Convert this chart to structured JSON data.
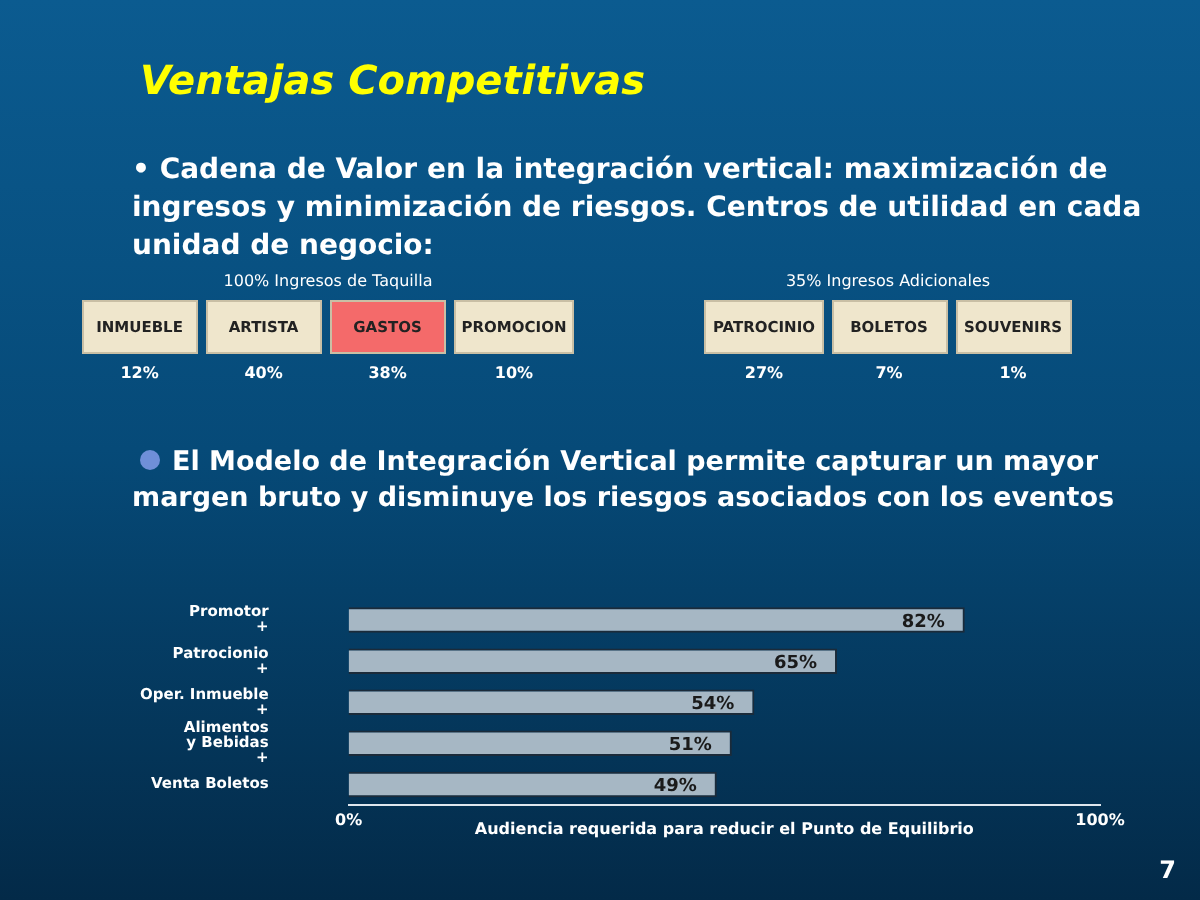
{
  "chart_data": [
    {
      "type": "other",
      "title": "Ventajas Competitivas",
      "subtitle": "• Cadena de Valor en la integración vertical: maximización de ingresos y minimización de riesgos. Centros de utilidad en cada unidad de negocio:",
      "annotations": [
        "7"
      ]
    },
    {
      "type": "other",
      "title": "100% Ingresos de Taquilla",
      "categories": [
        "INMUEBLE",
        "ARTISTA",
        "GASTOS",
        "PROMOCION"
      ],
      "value_labels": [
        "12%",
        "40%",
        "38%",
        "10%"
      ],
      "colors": [
        "#efe6cc",
        "#efe6cc",
        "#f46a6a",
        "#efe6cc"
      ]
    },
    {
      "type": "other",
      "title": "35% Ingresos Adicionales",
      "categories": [
        "PATROCINIO",
        "BOLETOS",
        "SOUVENIRS"
      ],
      "value_labels": [
        "27%",
        "7%",
        "1%"
      ],
      "colors": [
        "#efe6cc",
        "#efe6cc",
        "#efe6cc"
      ]
    },
    {
      "type": "bar",
      "orientation": "horizontal",
      "subtitle": "El Modelo de Integración Vertical permite capturar un mayor margen bruto y disminuye los riesgos asociados con los eventos",
      "xlabel": "Audiencia requerida para reducir el Punto de Equilibrio",
      "categories": [
        "Promotor\n+",
        "Patrocionio\n+",
        "Oper. Inmueble\n+",
        "Alimentos\ny Bebidas\n+",
        "Venta Boletos"
      ],
      "values": [
        82,
        65,
        54,
        51,
        49
      ],
      "value_labels": [
        "82%",
        "65%",
        "54%",
        "51%",
        "49%"
      ],
      "color": "#a6b7c4",
      "xlim": [
        0,
        100
      ],
      "xticks": [
        {
          "value": 0,
          "label": "0%"
        },
        {
          "value": 100,
          "label": "100%"
        }
      ],
      "grid": false,
      "legend": false
    }
  ]
}
